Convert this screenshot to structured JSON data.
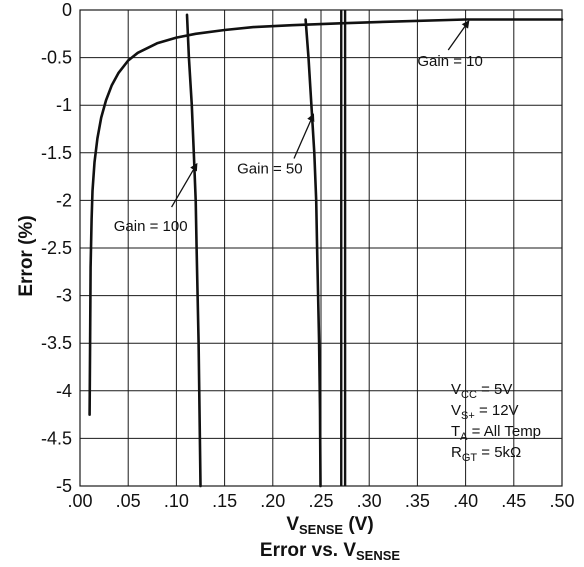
{
  "chart_data": {
    "type": "line",
    "title": {
      "main": "Error vs. V",
      "sub": "SENSE"
    },
    "xlabel": {
      "main": "V",
      "sub": "SENSE",
      "suffix": " (V)"
    },
    "ylabel": "Error (%)",
    "xlim": [
      0,
      0.5
    ],
    "ylim": [
      -5,
      0
    ],
    "x_ticks": [
      ".00",
      ".05",
      ".10",
      ".15",
      ".20",
      ".25",
      ".30",
      ".35",
      ".40",
      ".45",
      ".50"
    ],
    "y_ticks": [
      "0",
      "-0.5",
      "-1",
      "-1.5",
      "-2",
      "-2.5",
      "-3",
      "-3.5",
      "-4",
      "-4.5",
      "-5"
    ],
    "grid": true,
    "series": [
      {
        "name": "Gain = 10",
        "x": [
          0.01,
          0.0105,
          0.011,
          0.012,
          0.013,
          0.015,
          0.018,
          0.022,
          0.027,
          0.033,
          0.04,
          0.05,
          0.06,
          0.08,
          0.1,
          0.12,
          0.15,
          0.18,
          0.22,
          0.27,
          0.33,
          0.4,
          0.5
        ],
        "y": [
          -4.25,
          -3.5,
          -2.7,
          -2.2,
          -1.9,
          -1.6,
          -1.35,
          -1.13,
          -0.95,
          -0.79,
          -0.66,
          -0.53,
          -0.45,
          -0.35,
          -0.29,
          -0.25,
          -0.21,
          -0.18,
          -0.16,
          -0.14,
          -0.12,
          -0.1,
          -0.1
        ]
      },
      {
        "name": "Gain = 50",
        "x": [
          0.234,
          0.237,
          0.24,
          0.243,
          0.245,
          0.246,
          0.247,
          0.248,
          0.249,
          0.2495
        ],
        "y": [
          -0.1,
          -0.5,
          -1.0,
          -1.5,
          -2.0,
          -2.5,
          -3.0,
          -3.5,
          -4.2,
          -5.0
        ]
      },
      {
        "name": "Gain = 100",
        "x": [
          0.111,
          0.113,
          0.116,
          0.118,
          0.12,
          0.121,
          0.122,
          0.123,
          0.124,
          0.125
        ],
        "y": [
          -0.05,
          -0.5,
          -1.0,
          -1.5,
          -2.0,
          -2.5,
          -3.0,
          -3.5,
          -4.2,
          -5.0
        ]
      }
    ],
    "vertical_lines_x": [
      0.271,
      0.275
    ],
    "annotations": [
      {
        "label": "Gain = 10",
        "label_x": 0.35,
        "label_y": -0.59,
        "arrow_from": [
          0.382,
          -0.42
        ],
        "arrow_to": [
          0.403,
          -0.12
        ]
      },
      {
        "label": "Gain = 50",
        "label_x": 0.163,
        "label_y": -1.72,
        "arrow_from": [
          0.222,
          -1.56
        ],
        "arrow_to": [
          0.242,
          -1.1
        ]
      },
      {
        "label": "Gain = 100",
        "label_x": 0.035,
        "label_y": -2.32,
        "arrow_from": [
          0.095,
          -2.07
        ],
        "arrow_to": [
          0.121,
          -1.62
        ]
      }
    ],
    "conditions": [
      {
        "main": "V",
        "sub": "CC",
        "rest": " = 5V"
      },
      {
        "main": "V",
        "sub": "S+",
        "rest": " = 12V"
      },
      {
        "main": "T",
        "sub": "A",
        "rest": " = All Temp"
      },
      {
        "main": "R",
        "sub": "GT",
        "rest": " = 5kΩ"
      }
    ],
    "colors": {
      "line": "#111111",
      "grid": "#1a1a1a",
      "background": "#ffffff"
    }
  }
}
